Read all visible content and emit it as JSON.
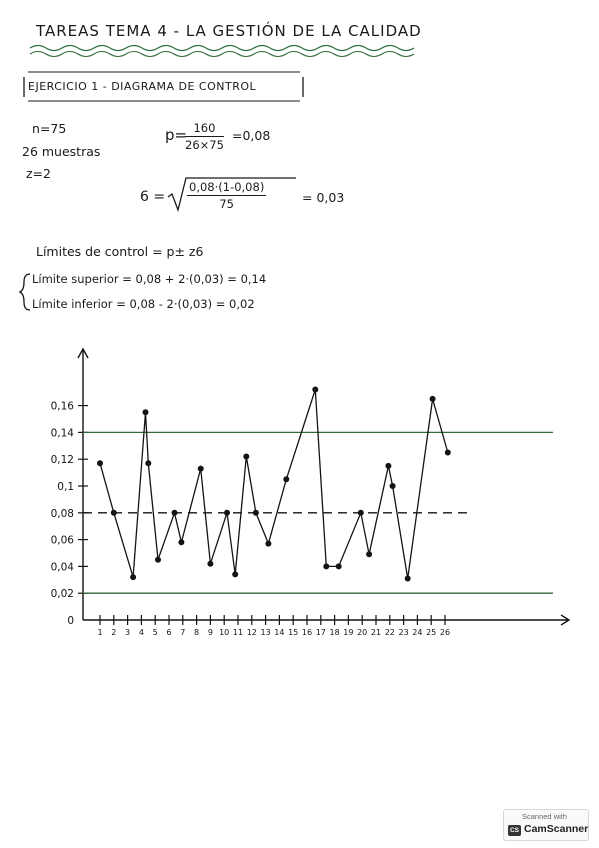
{
  "header": {
    "title": "TAREAS TEMA 4 - LA GESTIÓN DE LA CALIDAD",
    "subtitle": "EJERCICIO 1 - DIAGRAMA DE CONTROL"
  },
  "given": {
    "n": "n=75",
    "samples": "26 muestras",
    "z": "z=2"
  },
  "formulas": {
    "p_prefix": "p=",
    "p_num": "160",
    "p_den": "26×75",
    "p_result": "=0,08",
    "sigma_prefix": "6 =",
    "sigma_num": "0,08·(1-0,08)",
    "sigma_den": "75",
    "sigma_result": "= 0,03",
    "limits_label": "Límites de control = p± z6",
    "upper": "Límite superior = 0,08 + 2·(0,03) = 0,14",
    "lower": "Límite inferior = 0,08 - 2·(0,03) = 0,02"
  },
  "chart_data": {
    "type": "line",
    "title": "",
    "xlabel": "",
    "ylabel": "",
    "x": [
      1,
      2,
      3,
      4,
      5,
      6,
      7,
      8,
      9,
      10,
      11,
      12,
      13,
      14,
      15,
      16,
      17,
      18,
      19,
      20,
      21,
      22,
      23,
      24,
      25,
      26
    ],
    "y_tick_labels": [
      "0",
      "0,02",
      "0,04",
      "0,06",
      "0,08",
      "0,1",
      "0,12",
      "0,14",
      "0,16"
    ],
    "y_tick_values": [
      0,
      0.02,
      0.04,
      0.06,
      0.08,
      0.1,
      0.12,
      0.14,
      0.16
    ],
    "x_tick_labels": [
      "1",
      "2",
      "3",
      "4",
      "5",
      "6",
      "7",
      "8",
      "9",
      "10",
      "11",
      "12",
      "13",
      "14",
      "15",
      "16",
      "17",
      "18",
      "19",
      "20",
      "21",
      "22",
      "23",
      "24",
      "25",
      "26"
    ],
    "points": [
      [
        1,
        0.117
      ],
      [
        2,
        0.08
      ],
      [
        3.4,
        0.032
      ],
      [
        4.3,
        0.155
      ],
      [
        4.5,
        0.117
      ],
      [
        5.2,
        0.045
      ],
      [
        6.4,
        0.08
      ],
      [
        6.9,
        0.058
      ],
      [
        8.3,
        0.113
      ],
      [
        9,
        0.042
      ],
      [
        10.2,
        0.08
      ],
      [
        10.8,
        0.034
      ],
      [
        11.6,
        0.122
      ],
      [
        12.3,
        0.08
      ],
      [
        13.2,
        0.057
      ],
      [
        14.5,
        0.105
      ],
      [
        16.6,
        0.172
      ],
      [
        17.4,
        0.04
      ],
      [
        18.3,
        0.04
      ],
      [
        19.9,
        0.08
      ],
      [
        20.5,
        0.049
      ],
      [
        21.9,
        0.115
      ],
      [
        22.2,
        0.1
      ],
      [
        23.3,
        0.031
      ],
      [
        25.1,
        0.165
      ],
      [
        26.2,
        0.125
      ]
    ],
    "center_line": 0.08,
    "upper_limit": 0.14,
    "lower_limit": 0.02,
    "ylim": [
      0,
      0.2
    ],
    "xlim": [
      0,
      33
    ],
    "grid": false,
    "legend": "none",
    "colors": {
      "data": "#141414",
      "limits": "#2f6b3a",
      "center": "#141414"
    }
  },
  "scanner": {
    "scanned_with": "Scanned with",
    "logo": "CS",
    "brand": "CamScanner"
  }
}
